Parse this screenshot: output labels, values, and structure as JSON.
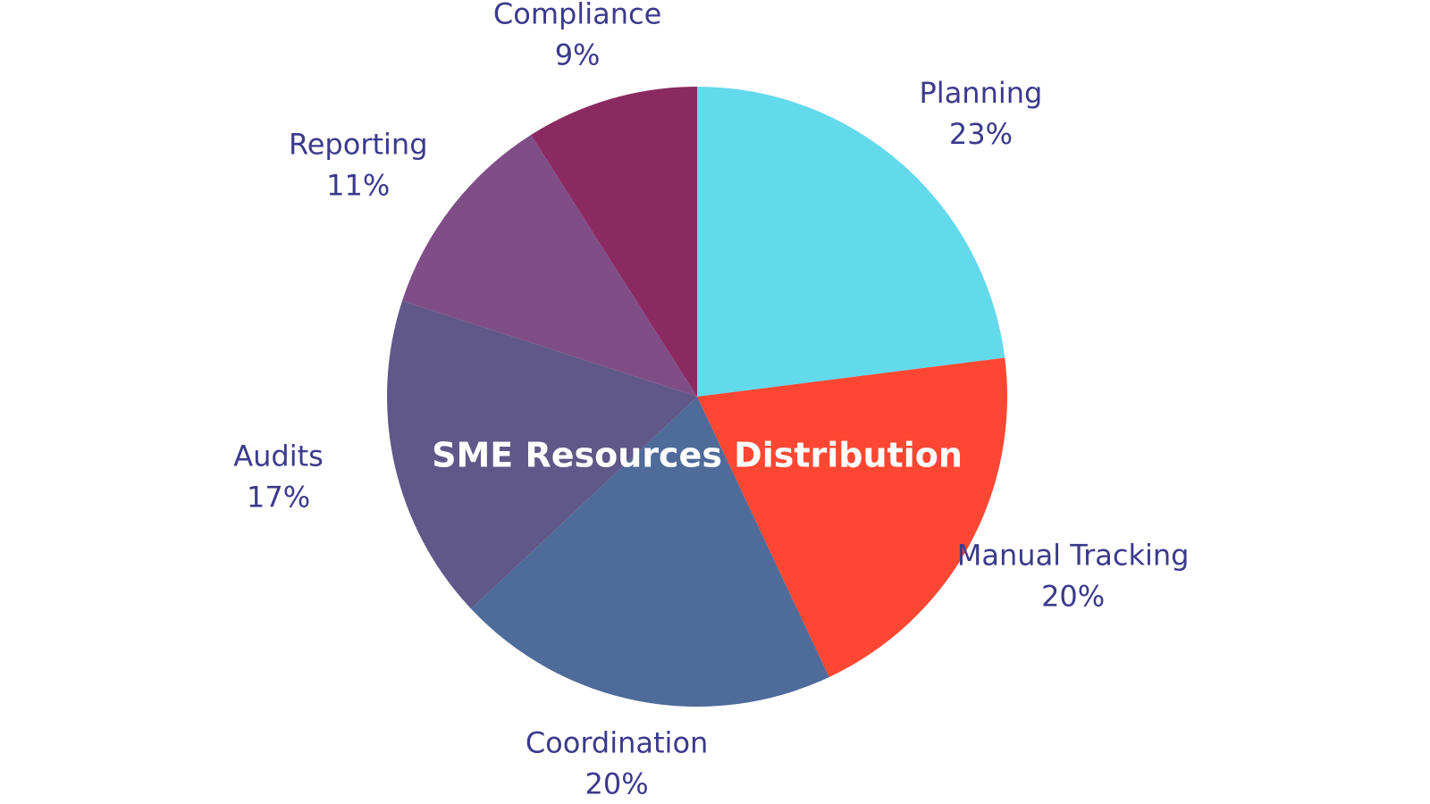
{
  "chart_data": {
    "type": "pie",
    "title": "SME Resources Distribution",
    "categories": [
      "Planning",
      "Manual Tracking",
      "Coordination",
      "Audits",
      "Reporting",
      "Compliance"
    ],
    "values": [
      23,
      20,
      20,
      17,
      11,
      9
    ],
    "value_labels": [
      "23%",
      "20%",
      "20%",
      "17%",
      "11%",
      "9%"
    ],
    "colors": [
      "#63d9ec",
      "#fe4733",
      "#4e6b9a",
      "#5f5888",
      "#7f4e87",
      "#8b2a62"
    ]
  }
}
